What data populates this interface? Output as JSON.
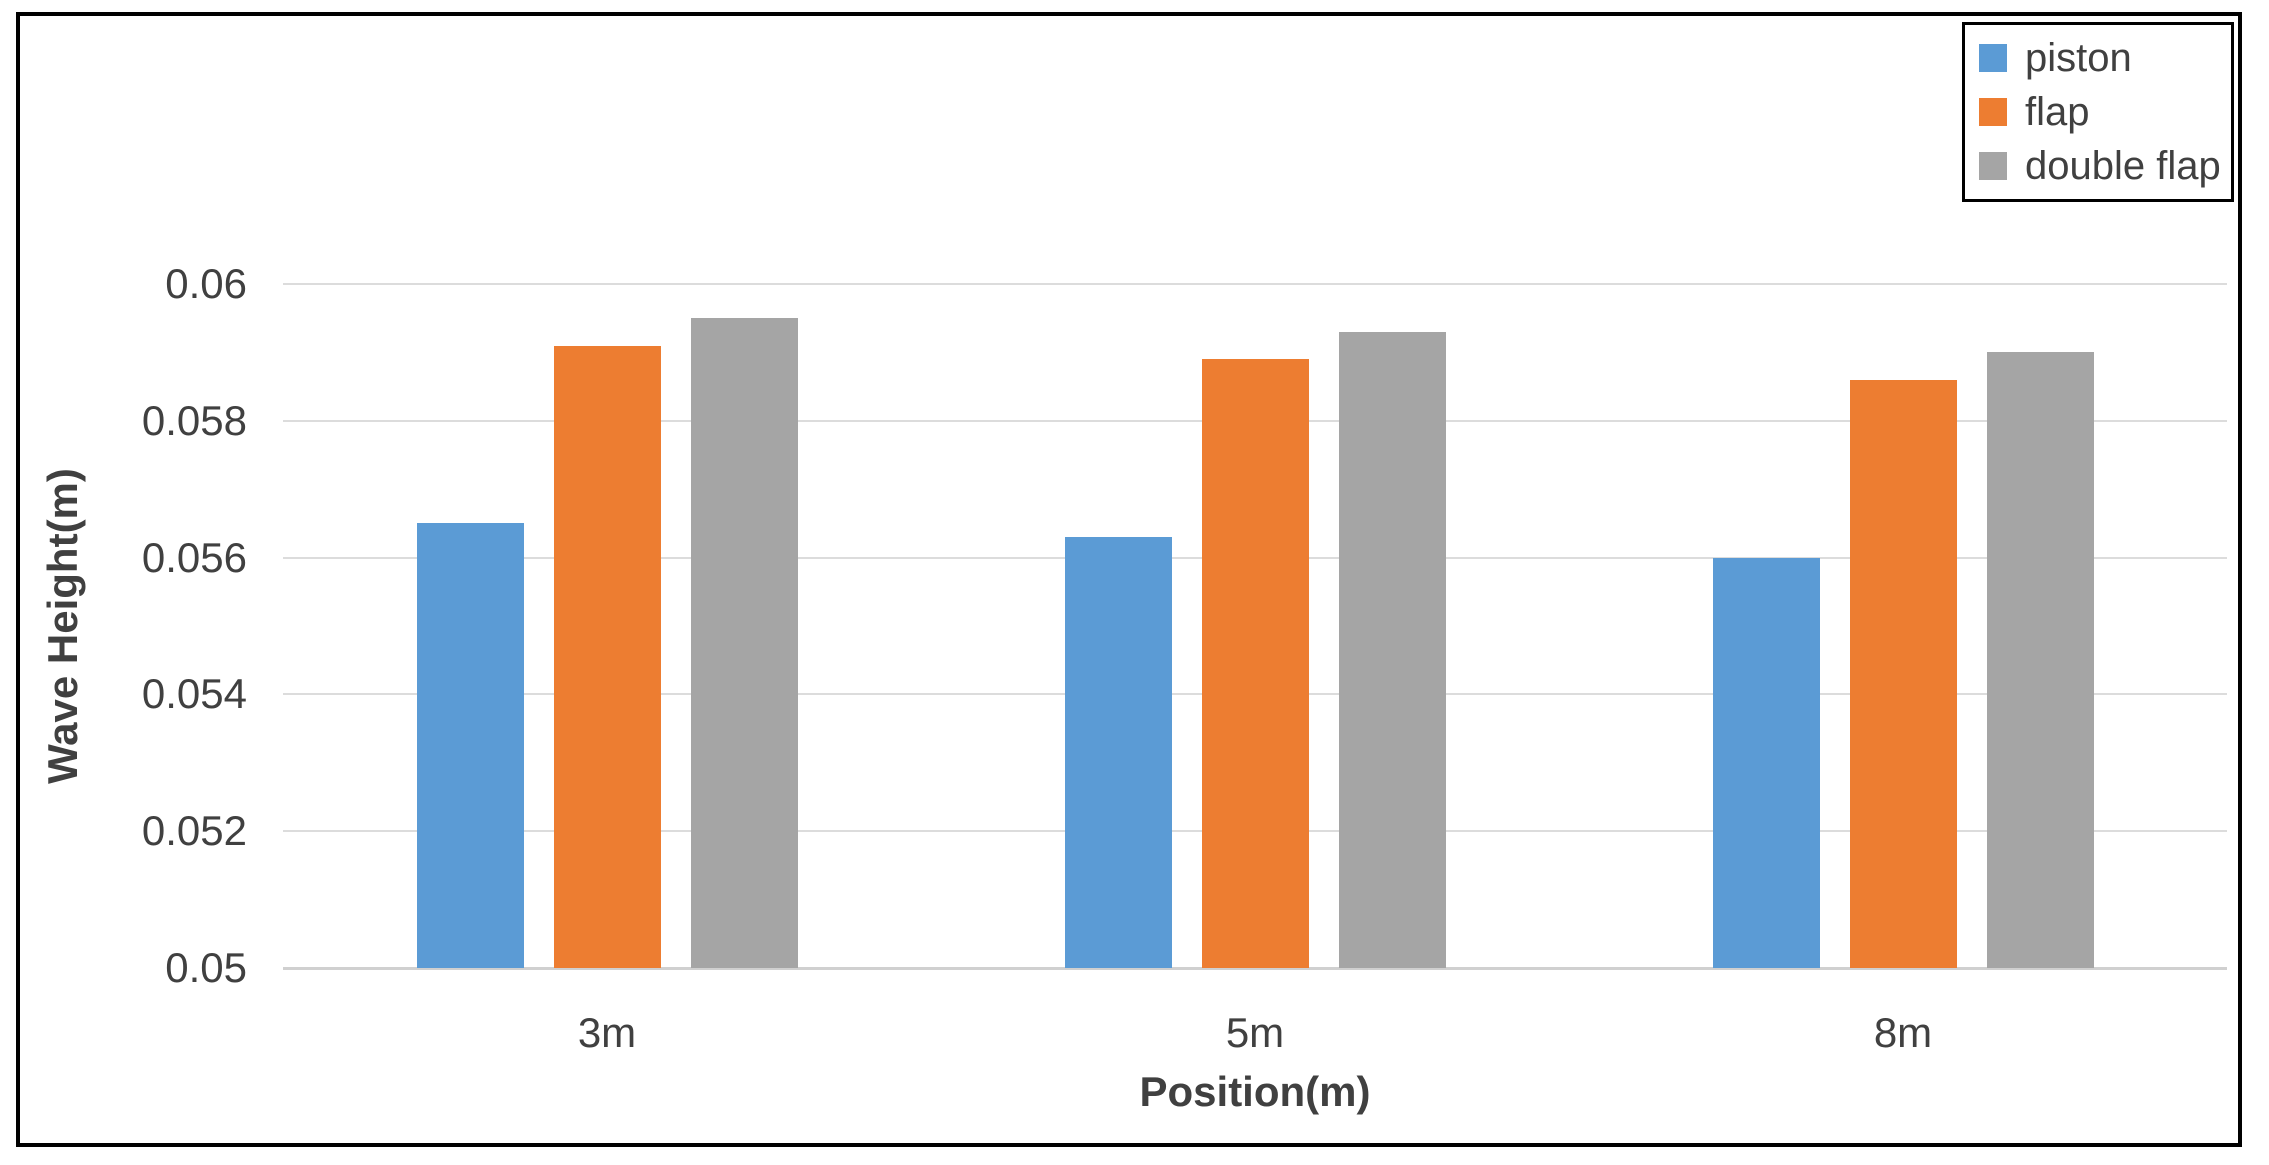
{
  "chart_data": {
    "type": "bar",
    "title": "",
    "categories": [
      "3m",
      "5m",
      "8m"
    ],
    "series": [
      {
        "name": "piston",
        "color": "#5B9BD5",
        "values": [
          0.0565,
          0.0563,
          0.056
        ]
      },
      {
        "name": "flap",
        "color": "#ED7D31",
        "values": [
          0.0591,
          0.0589,
          0.0586
        ]
      },
      {
        "name": "double flap",
        "color": "#A5A5A5",
        "values": [
          0.0595,
          0.0593,
          0.059
        ]
      }
    ],
    "xlabel": "Position(m)",
    "ylabel": "Wave Height(m)",
    "ylim": [
      0.05,
      0.06
    ],
    "yticks": [
      "0.06",
      "0.058",
      "0.056",
      "0.054",
      "0.052",
      "0.05"
    ],
    "grid": "horizontal-only",
    "legend_position": "top-right"
  },
  "colors": {
    "background": "#FFFFFF",
    "frame_border": "#000000",
    "gridline": "#DCDCDC",
    "axis_line": "#D0D0D0",
    "text": "#404040"
  }
}
